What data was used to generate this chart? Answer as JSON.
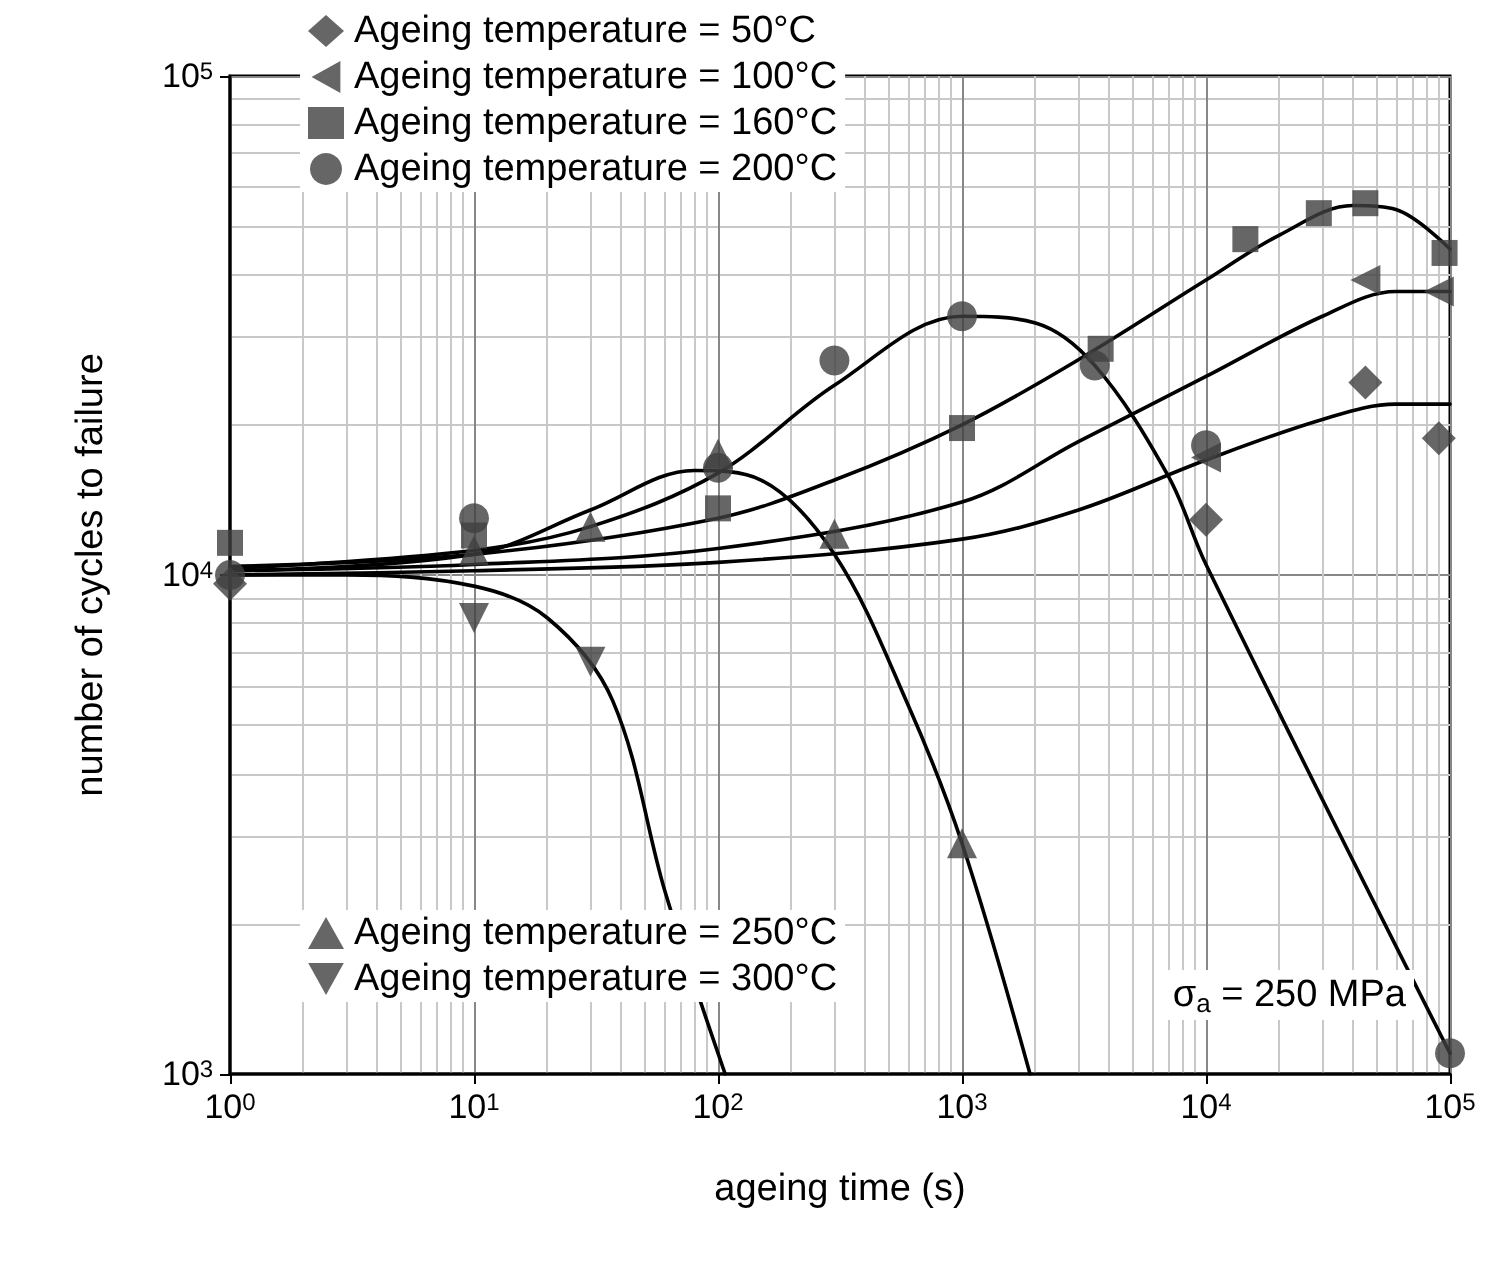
{
  "chart_data": {
    "type": "scatter",
    "xlabel": "ageing time (s)",
    "ylabel": "number of cycles to failure",
    "log": "xy",
    "grid": true,
    "legend": "top left",
    "xlim": [
      1,
      100000
    ],
    "ylim": [
      1000,
      100000
    ],
    "xticks": [
      {
        "value": 1,
        "label": "10$^{0}$"
      },
      {
        "value": 10,
        "label": "10$^{1}$"
      },
      {
        "value": 100,
        "label": "10$^{2}$"
      },
      {
        "value": 1000,
        "label": "10$^{3}$"
      },
      {
        "value": 10000,
        "label": "10$^{4}$"
      },
      {
        "value": 100000,
        "label": "10$^{5}$"
      }
    ],
    "yticks": [
      {
        "value": 1000,
        "label": "10$^{3}$"
      },
      {
        "value": 10000,
        "label": "10$^{4}$"
      },
      {
        "value": 100000,
        "label": "10$^{5}$"
      }
    ],
    "annotations": [
      "σ$_{a}$ = 250 MPa"
    ],
    "series": [
      {
        "name": "Ageing temperature = 50°C",
        "color": "#404040",
        "marker": "diamond",
        "x": [
          1,
          10000,
          45000,
          90000
        ],
        "values": [
          9600,
          12900,
          24300,
          18800
        ]
      },
      {
        "name": "Ageing temperature = 100°C",
        "color": "#404040",
        "marker": "triangle-left",
        "x": [
          10000,
          45000,
          90000
        ],
        "values": [
          17200,
          39000,
          37000
        ]
      },
      {
        "name": "Ageing temperature = 160°C",
        "color": "#404040",
        "marker": "square",
        "x": [
          1,
          10,
          100,
          1000,
          3700,
          14500,
          29000,
          45000,
          95000
        ],
        "values": [
          11600,
          12000,
          13600,
          19700,
          28400,
          47100,
          53100,
          55600,
          44200
        ]
      },
      {
        "name": "Ageing temperature = 200°C",
        "color": "#404040",
        "marker": "circle",
        "x": [
          1,
          10,
          100,
          300,
          1000,
          3500,
          10000,
          100000
        ],
        "values": [
          10000,
          13000,
          16400,
          26900,
          33000,
          26300,
          18200,
          1100
        ]
      },
      {
        "name": "Ageing temperature = 250°C",
        "color": "#404040",
        "marker": "triangle",
        "x": [
          10,
          30,
          100,
          300,
          1000
        ],
        "values": [
          11200,
          12500,
          17500,
          12100,
          2900
        ]
      },
      {
        "name": "Ageing temperature = 300°C",
        "color": "#404040",
        "marker": "triangle-down",
        "x": [
          10,
          30
        ],
        "values": [
          8200,
          6700
        ]
      },
      {
        "type": "line",
        "color": "#000000",
        "marker": "none",
        "x": [
          1,
          10,
          100,
          1000,
          3000,
          10000,
          30000,
          60000,
          100000
        ],
        "values": [
          10000,
          10200,
          10600,
          11800,
          13500,
          17000,
          20500,
          22000,
          22000
        ]
      },
      {
        "type": "line",
        "color": "#000000",
        "marker": "none",
        "x": [
          1,
          10,
          100,
          1000,
          3000,
          10000,
          30000,
          60000,
          100000
        ],
        "values": [
          10200,
          10500,
          11300,
          14000,
          18500,
          25000,
          33000,
          37000,
          37000
        ]
      },
      {
        "type": "line",
        "color": "#000000",
        "marker": "none",
        "x": [
          1,
          10,
          100,
          300,
          1000,
          3000,
          10000,
          20000,
          40000,
          60000,
          100000
        ],
        "values": [
          10400,
          11000,
          13000,
          15500,
          20000,
          27000,
          39000,
          48000,
          55000,
          54000,
          45000
        ]
      },
      {
        "type": "line",
        "color": "#000000",
        "marker": "none",
        "x": [
          1,
          10,
          30,
          100,
          300,
          1000,
          2000,
          3500,
          7000,
          10000,
          100000
        ],
        "values": [
          10300,
          11200,
          12500,
          16000,
          24000,
          33000,
          32000,
          26300,
          15800,
          10500,
          1100
        ]
      },
      {
        "type": "line",
        "color": "#000000",
        "marker": "none",
        "x": [
          1,
          10,
          30,
          80,
          150,
          300,
          600,
          1000,
          1900
        ],
        "values": [
          10200,
          11000,
          13500,
          16200,
          15500,
          11000,
          5500,
          2900,
          1000
        ]
      },
      {
        "type": "line",
        "color": "#000000",
        "marker": "none",
        "x": [
          1,
          3,
          10,
          20,
          37,
          61,
          107
        ],
        "values": [
          10000,
          10000,
          9500,
          8200,
          5600,
          2300,
          1000
        ]
      }
    ]
  }
}
